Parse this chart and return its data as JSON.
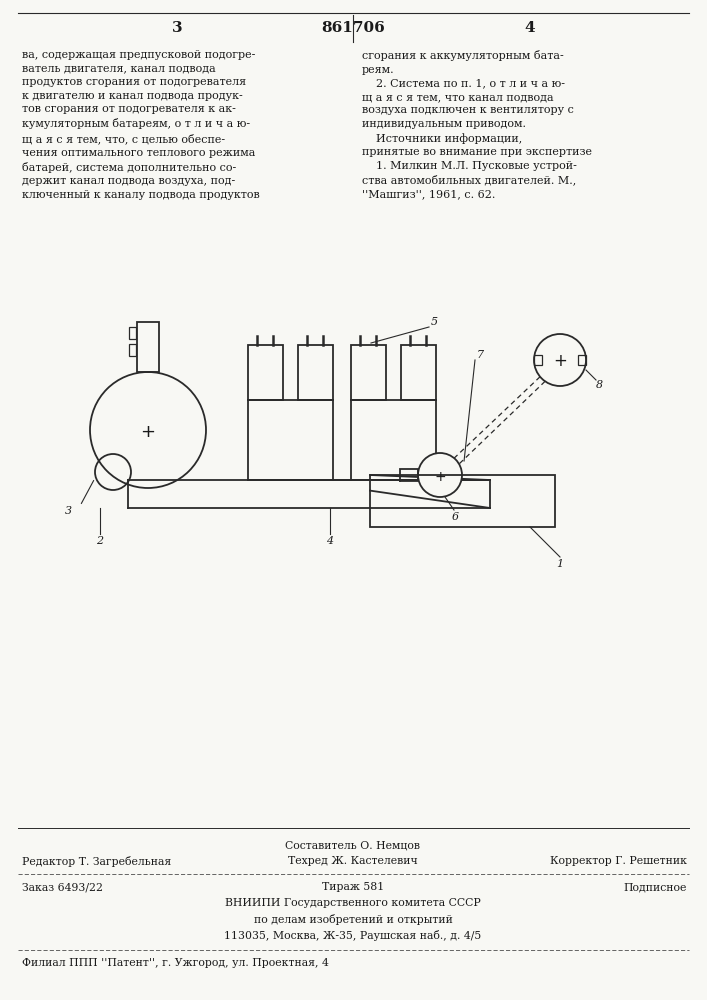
{
  "page_number_left": "3",
  "page_number_center": "861706",
  "page_number_right": "4",
  "text_left": "ва, содержащая предпусковой подогре-\nватель двигателя, канал подвода\nпродуктов сгорания от подогревателя\nк двигателю и канал подвода продук-\nтов сгорания от подогревателя к ак-\nкумуляторным батареям, о т л и ч а ю-\nщ а я с я тем, что, с целью обеспе-\nчения оптимального теплового режима\nбатарей, система дополнительно со-\nдержит канал подвода воздуха, под-\nключенный к каналу подвода продуктов",
  "text_right": "сгорания к аккумуляторным бата-\nреям.\n    2. Система по п. 1, о т л и ч а ю-\nщ а я с я тем, что канал подвода\nвоздуха подключен к вентилятору с\nиндивидуальным приводом.\n    Источники информации,\nпринятые во внимание при экспертизе\n    1. Милкин М.Л. Пусковые устрой-\nства автомобильных двигателей. М.,\n''Машгиз'', 1961, с. 62.",
  "label_5": "5",
  "label_6": "6",
  "label_7": "7",
  "label_8": "8",
  "label_3": "3",
  "label_2": "2",
  "label_4": "4",
  "label_1": "1",
  "footer_line1": "Составитель О. Немцов",
  "footer_line2_left": "Редактор Т. Загребельная",
  "footer_line2_center": "Техред Ж. Кастелевич",
  "footer_line2_right": "Корректор Г. Решетник",
  "footer_line3_left": "Заказ 6493/22",
  "footer_line3_center": "Тираж 581",
  "footer_line3_right": "Подписное",
  "footer_line4": "ВНИИПИ Государственного комитета СССР",
  "footer_line5": "по делам изобретений и открытий",
  "footer_line6": "113035, Москва, Ж-35, Раушская наб., д. 4/5",
  "footer_line7": "Филиал ППП ''Патент'', г. Ужгород, ул. Проектная, 4",
  "bg_color": "#f8f8f4",
  "text_color": "#1a1a1a",
  "line_color": "#2a2a2a"
}
